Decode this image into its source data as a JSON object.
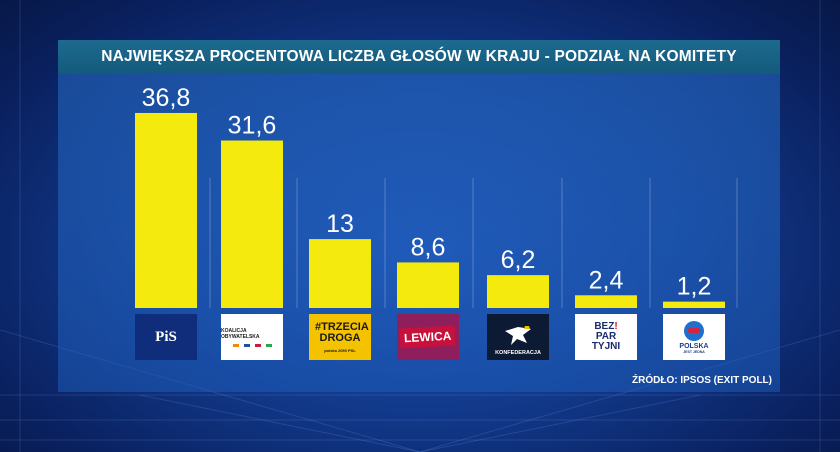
{
  "header": {
    "title": "NAJWIĘKSZA PROCENTOWA LICZBA GŁOSÓW W KRAJU - PODZIAŁ NA KOMITETY"
  },
  "footer": {
    "source": "ŹRÓDŁO: IPSOS (EXIT POLL)"
  },
  "colors": {
    "bar": "#f4ea0e",
    "title_bar": "#1a6589",
    "background": "#123a8c"
  },
  "logos": {
    "pis": "PiS",
    "ko": "KOALICJA OBYWATELSKA",
    "td_main": "#TRZECIA DROGA",
    "td_sub": "polska 2050   PSL",
    "lewica": "LEWICA",
    "konf": "KONFEDERACJA",
    "bez_line1": "BEZ",
    "bez_line2": "PAR",
    "bez_line3": "TYJNI",
    "pjj_main": "POLSKA",
    "pjj_sub": "JEST JEDNA"
  },
  "chart_data": {
    "type": "bar",
    "title": "NAJWIĘKSZA PROCENTOWA LICZBA GŁOSÓW W KRAJU - PODZIAŁ NA KOMITETY",
    "categories": [
      "PiS",
      "Koalicja Obywatelska",
      "Trzecia Droga",
      "Lewica",
      "Konfederacja",
      "Bezpartyjni",
      "Polska Jest Jedna"
    ],
    "values": [
      36.8,
      31.6,
      13,
      8.6,
      6.2,
      2.4,
      1.2
    ],
    "value_labels": [
      "36,8",
      "31,6",
      "13",
      "8,6",
      "6,2",
      "2,4",
      "1,2"
    ],
    "ylim": [
      0,
      40
    ],
    "xlabel": "",
    "ylabel": "",
    "grid": true
  }
}
